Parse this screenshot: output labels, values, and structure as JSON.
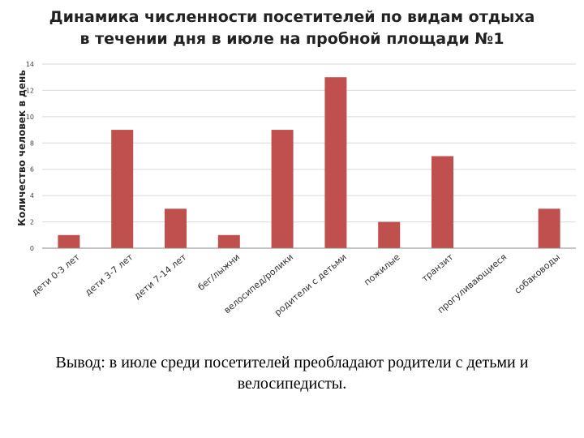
{
  "title": {
    "line1": "Динамика численности посетителей по видам отдыха",
    "line2": "в течении дня в июле на пробной площади №1"
  },
  "chart_data": {
    "type": "bar",
    "ylabel": "Количество человек в день",
    "xlabel": "",
    "ylim": [
      0,
      14
    ],
    "yticks": [
      0,
      2,
      4,
      6,
      8,
      10,
      12,
      14
    ],
    "grid": true,
    "legend": "none",
    "categories": [
      "дети 0-3 лет",
      "дети 3-7 лет",
      "дети 7-14 лет",
      "бег/лыжни",
      "велосипед/ролики",
      "родители с детьми",
      "пожилые",
      "транзит",
      "прогуливающиеся",
      "собаководы"
    ],
    "values": [
      1,
      9,
      3,
      1,
      9,
      13,
      2,
      7,
      0,
      3
    ],
    "bar_color": "#c0504d"
  },
  "conclusion": {
    "line1": "Вывод: в июле среди посетителей преобладают родители с детьми и",
    "line2": "велосипедисты."
  }
}
